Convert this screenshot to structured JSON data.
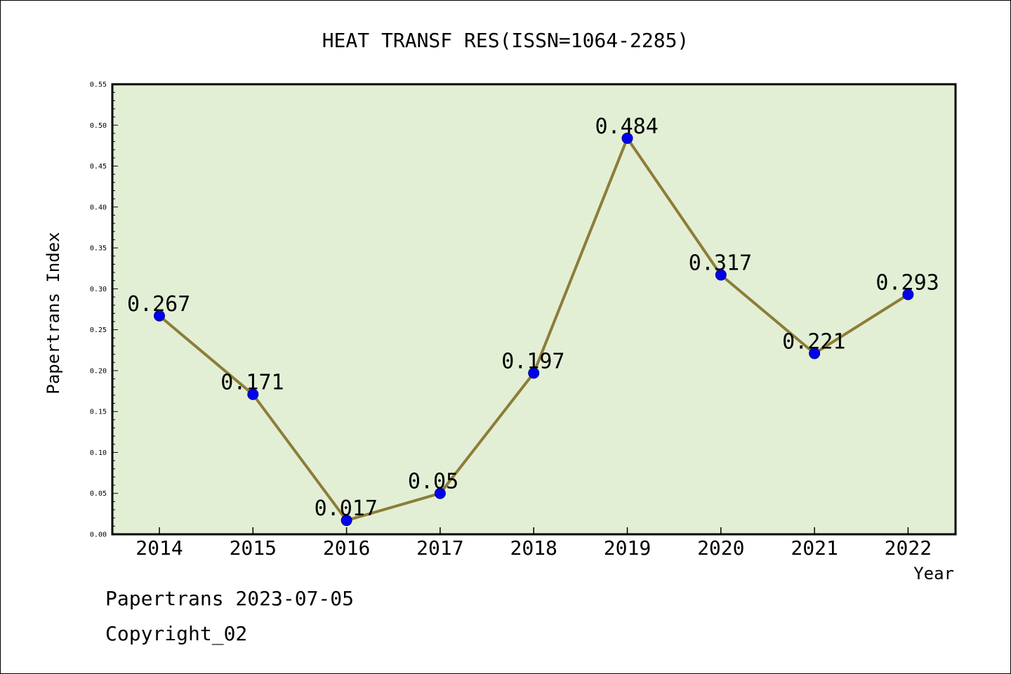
{
  "chart_data": {
    "type": "line",
    "title": "HEAT TRANSF RES(ISSN=1064-2285)",
    "xlabel": "Year",
    "ylabel": "Papertrans Index",
    "categories": [
      "2014",
      "2015",
      "2016",
      "2017",
      "2018",
      "2019",
      "2020",
      "2021",
      "2022"
    ],
    "series": [
      {
        "values": [
          0.267,
          0.171,
          0.017,
          0.05,
          0.197,
          0.484,
          0.317,
          0.221,
          0.293
        ],
        "data_labels": [
          "0.267",
          "0.171",
          "0.017",
          "0.05",
          "0.197",
          "0.484",
          "0.317",
          "0.221",
          "0.293"
        ]
      }
    ],
    "ylim": [
      0,
      0.55
    ],
    "yticks": [
      "0.00",
      "0.05",
      "0.10",
      "0.15",
      "0.20",
      "0.25",
      "0.30",
      "0.35",
      "0.40",
      "0.45",
      "0.50",
      "0.55"
    ],
    "grid": false,
    "legend": "none",
    "colors": {
      "plot_background": "#e2efd5",
      "line": "#8c7d38",
      "marker": "#0000ee",
      "marker_edge": "#00008b",
      "axis": "#000000"
    }
  },
  "footer": {
    "line1": "Papertrans 2023-07-05",
    "line2": "Copyright_02"
  }
}
